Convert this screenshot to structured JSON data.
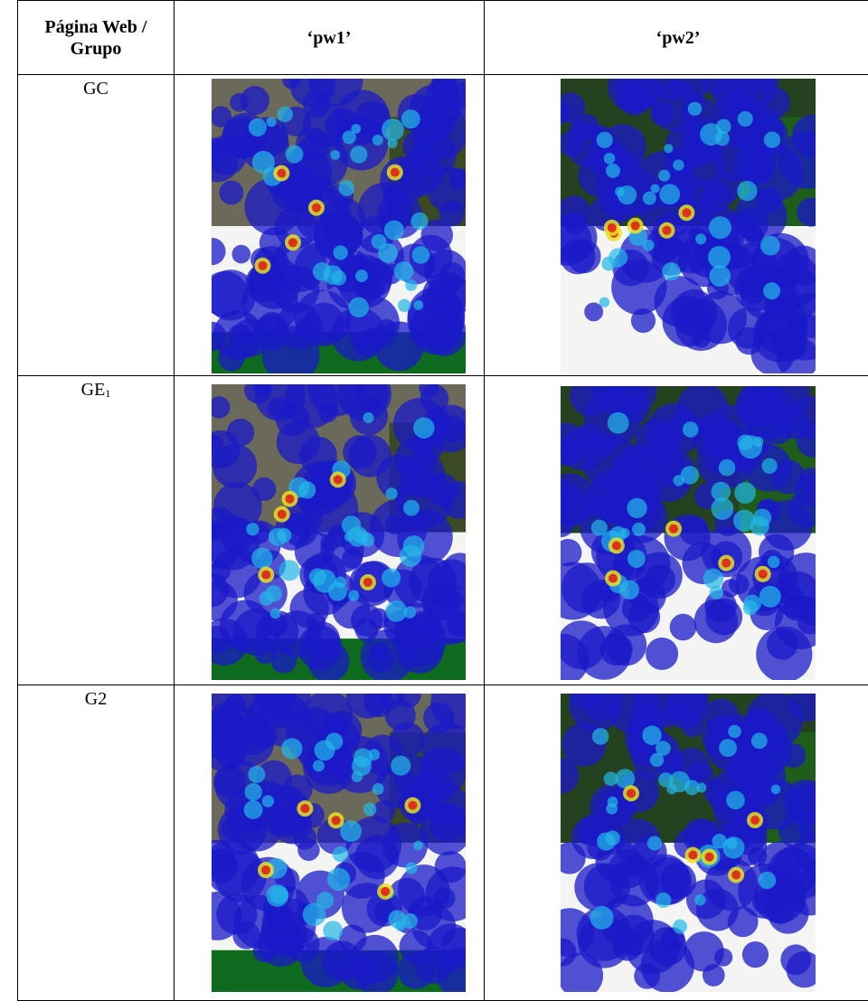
{
  "header": {
    "group": "Página Web / Grupo",
    "pw1": "‘pw1’",
    "pw2": "‘pw2’"
  },
  "rows": [
    {
      "label": "GC"
    },
    {
      "label": "GE",
      "sub": "1"
    },
    {
      "label": "G2"
    }
  ]
}
